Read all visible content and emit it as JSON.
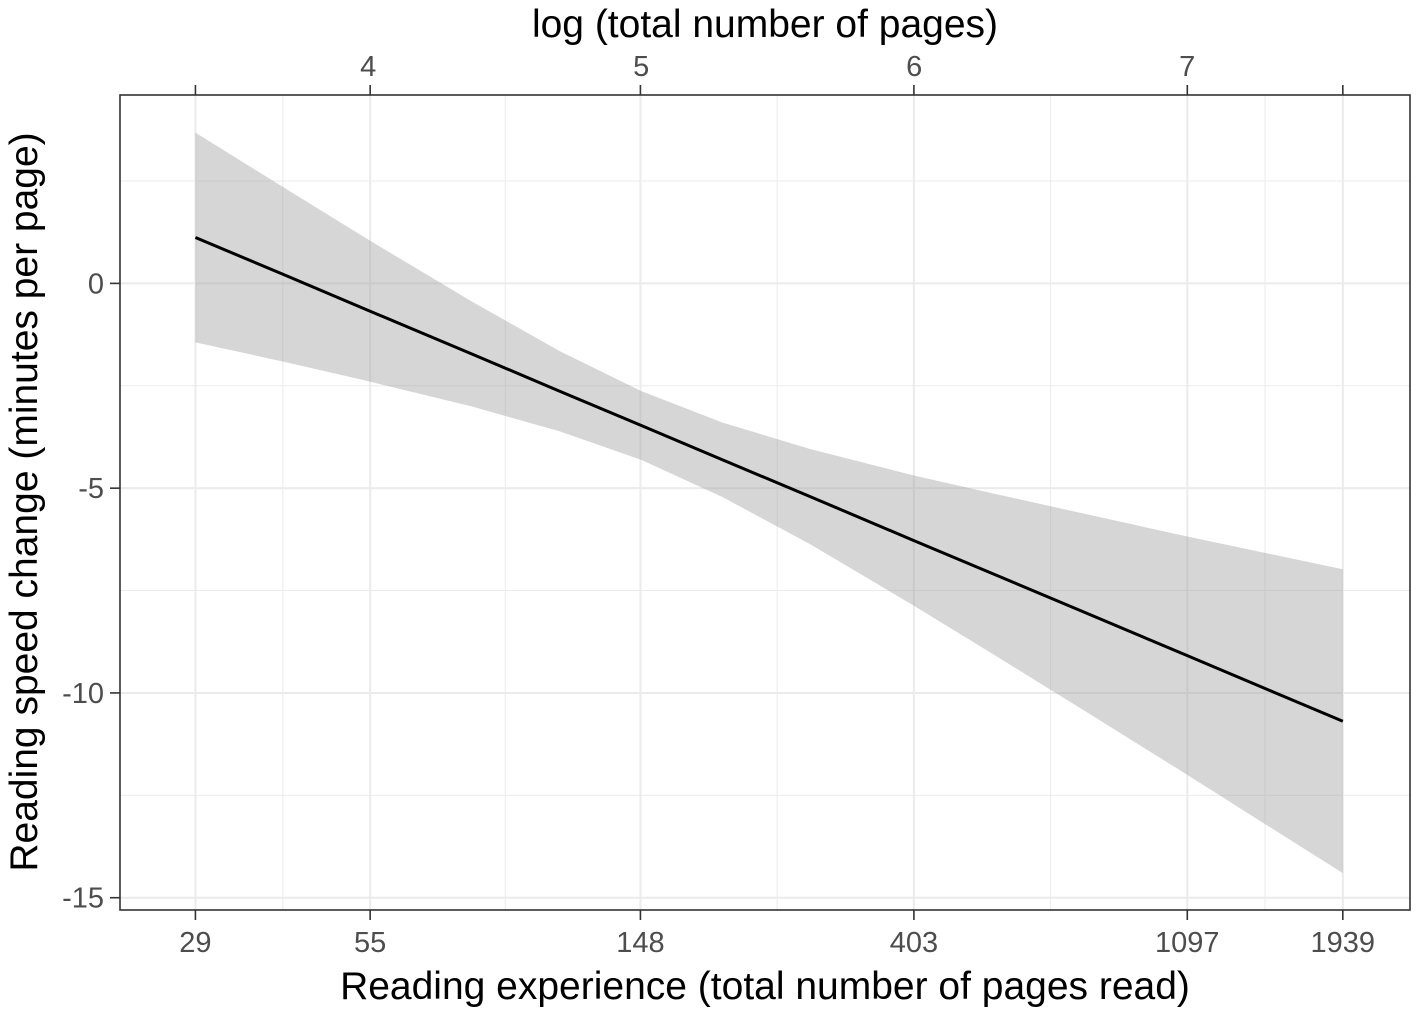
{
  "chart_data": {
    "type": "line",
    "x_scale": "log",
    "x": [
      29,
      40,
      55,
      80,
      110,
      148,
      200,
      275,
      403,
      550,
      750,
      1097,
      1500,
      1939
    ],
    "series": [
      {
        "values": [
          1.12,
          0.22,
          -0.68,
          -1.73,
          -2.63,
          -3.46,
          -4.31,
          -5.2,
          -6.28,
          -7.15,
          -8.02,
          -9.09,
          -9.97,
          -10.69
        ],
        "color": "#000000"
      }
    ],
    "band": {
      "lower": [
        -1.44,
        -1.91,
        -2.4,
        -3.01,
        -3.61,
        -4.3,
        -5.22,
        -6.36,
        -7.87,
        -9.14,
        -10.42,
        -12.0,
        -13.32,
        -14.4
      ],
      "upper": [
        3.68,
        2.35,
        1.04,
        -0.45,
        -1.65,
        -2.62,
        -3.4,
        -4.04,
        -4.69,
        -5.16,
        -5.62,
        -6.18,
        -6.62,
        -6.98
      ],
      "color": "#999999"
    },
    "xlabel": "Reading experience (total number of pages read)",
    "x2label": "log (total number of pages)",
    "ylabel": "Reading speed change (minutes per page)",
    "x_ticks": [
      29,
      55,
      148,
      403,
      1097,
      1939
    ],
    "x2_ticks": [
      4,
      5,
      6,
      7
    ],
    "y_ticks": [
      0,
      -5,
      -10,
      -15
    ],
    "xlim": [
      22,
      2480
    ],
    "ylim": [
      -15.3,
      4.6
    ],
    "grid": true
  }
}
